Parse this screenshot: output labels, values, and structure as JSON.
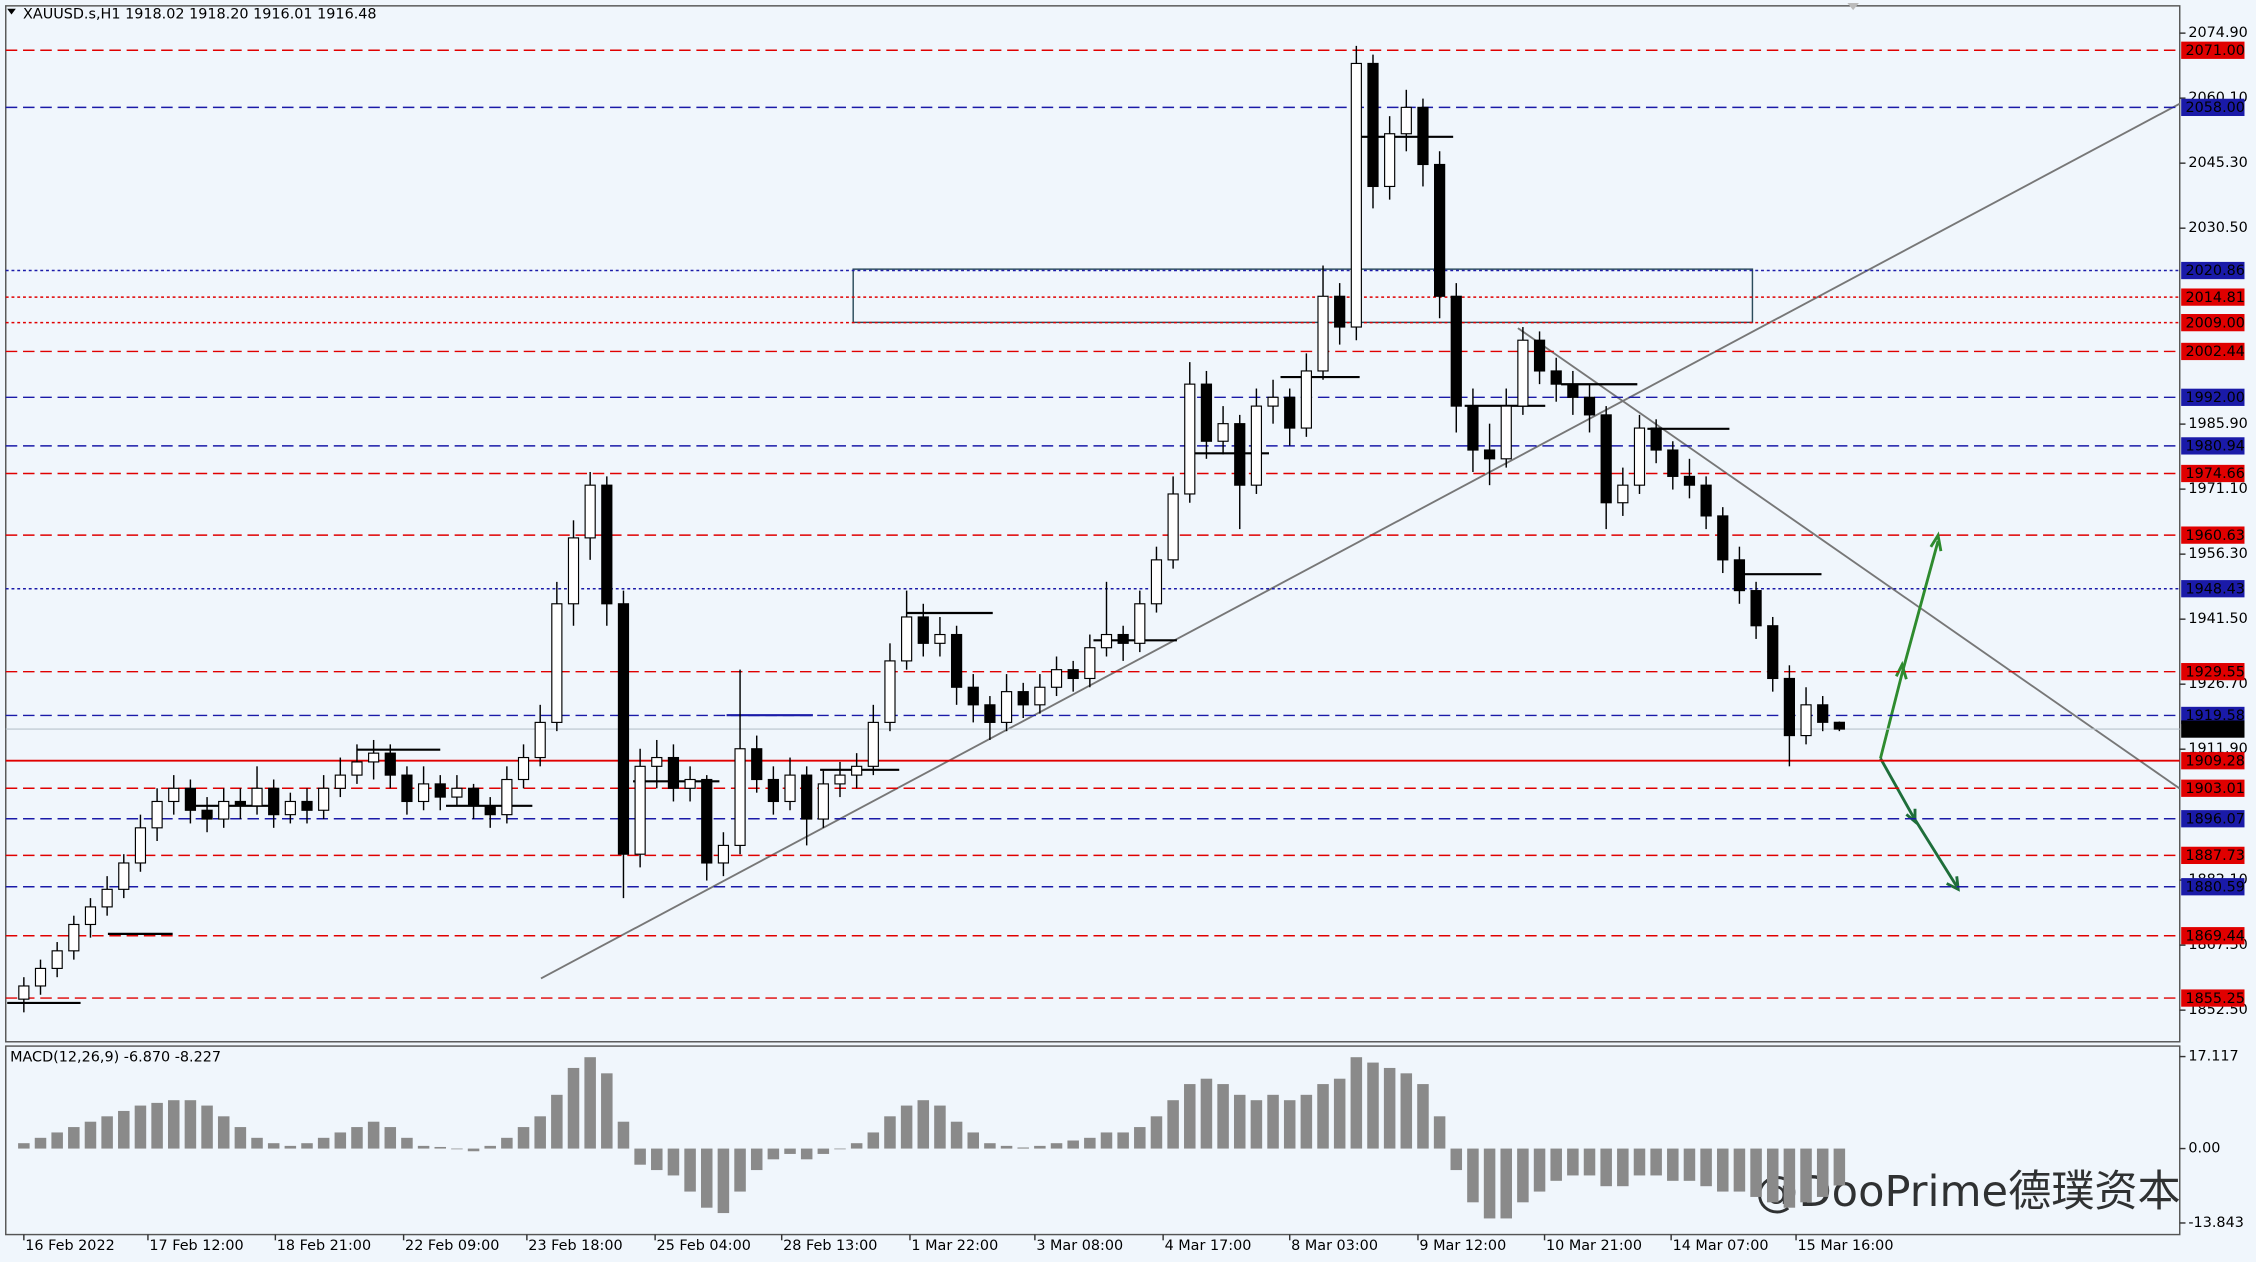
{
  "chart_data": {
    "type": "candlestick",
    "title": "XAUUSD.s,H1  1918.02 1918.20 1916.01 1916.48",
    "watermark": "@DooPrime德璞资本",
    "xlim": [
      -1,
      110
    ],
    "xticks": [
      {
        "value": 0,
        "label": "16 Feb 2022"
      },
      {
        "value": 7.45,
        "label": "17 Feb 12:00"
      },
      {
        "value": 15.1,
        "label": "18 Feb 21:00"
      },
      {
        "value": 22.8,
        "label": "22 Feb 09:00"
      },
      {
        "value": 30.2,
        "label": "23 Feb 18:00"
      },
      {
        "value": 37.9,
        "label": "25 Feb 04:00"
      },
      {
        "value": 45.5,
        "label": "28 Feb 13:00"
      },
      {
        "value": 53.2,
        "label": "1 Mar 22:00"
      },
      {
        "value": 60.7,
        "label": "3 Mar 08:00"
      },
      {
        "value": 68.4,
        "label": "4 Mar 17:00"
      },
      {
        "value": 76.0,
        "label": "8 Mar 03:00"
      },
      {
        "value": 83.7,
        "label": "9 Mar 12:00"
      },
      {
        "value": 91.3,
        "label": "10 Mar 21:00"
      },
      {
        "value": 98.9,
        "label": "14 Mar 07:00"
      },
      {
        "value": 106.4,
        "label": "15 Mar 16:00"
      }
    ],
    "ylim": [
      1845.3,
      2079.8
    ],
    "yticks": [
      {
        "value": 2074.9,
        "label": "2074.90"
      },
      {
        "value": 2060.1,
        "label": "2060.10"
      },
      {
        "value": 2045.3,
        "label": "2045.30"
      },
      {
        "value": 2030.5,
        "label": "2030.50"
      },
      {
        "value": 1985.9,
        "label": "1985.90"
      },
      {
        "value": 1971.1,
        "label": "1971.10"
      },
      {
        "value": 1956.3,
        "label": "1956.30"
      },
      {
        "value": 1941.5,
        "label": "1941.50"
      },
      {
        "value": 1926.7,
        "label": "1926.70"
      },
      {
        "value": 1911.9,
        "label": "1911.90"
      },
      {
        "value": 1882.1,
        "label": "1882.10"
      },
      {
        "value": 1867.3,
        "label": "1867.30"
      },
      {
        "value": 1852.5,
        "label": "1852.50"
      }
    ],
    "levels": [
      {
        "value": 2071,
        "label": "2071.00",
        "color": "#e00000",
        "dash": "dashed"
      },
      {
        "value": 2058,
        "label": "2058.00",
        "color": "#1a1aa8",
        "dash": "dashed"
      },
      {
        "value": 2020.86,
        "label": "2020.86",
        "color": "#1a1aa8",
        "dash": "dotted"
      },
      {
        "value": 2014.81,
        "label": "2014.81",
        "color": "#e00000",
        "dash": "dotted"
      },
      {
        "value": 2009,
        "label": "2009.00",
        "color": "#e00000",
        "dash": "dotted"
      },
      {
        "value": 2002.44,
        "label": "2002.44",
        "color": "#e00000",
        "dash": "dashed"
      },
      {
        "value": 1992,
        "label": "1992.00",
        "color": "#1a1aa8",
        "dash": "dashed"
      },
      {
        "value": 1980.94,
        "label": "1980.94",
        "color": "#1a1aa8",
        "dash": "dashed"
      },
      {
        "value": 1974.66,
        "label": "1974.66",
        "color": "#e00000",
        "dash": "dashed"
      },
      {
        "value": 1960.63,
        "label": "1960.63",
        "color": "#e00000",
        "dash": "dashed"
      },
      {
        "value": 1948.43,
        "label": "1948.43",
        "color": "#1a1aa8",
        "dash": "dotted"
      },
      {
        "value": 1929.55,
        "label": "1929.55",
        "color": "#e00000",
        "dash": "dashed"
      },
      {
        "value": 1919.58,
        "label": "1919.58",
        "color": "#1a1aa8",
        "dash": "dashed"
      },
      {
        "value": 1916.48,
        "label": "1916.48",
        "color": "#000000",
        "dash": "none"
      },
      {
        "value": 1909.28,
        "label": "1909.28",
        "color": "#e00000",
        "dash": "solid"
      },
      {
        "value": 1903.01,
        "label": "1903.01",
        "color": "#e00000",
        "dash": "dashed"
      },
      {
        "value": 1896.07,
        "label": "1896.07",
        "color": "#1a1aa8",
        "dash": "dashed"
      },
      {
        "value": 1887.73,
        "label": "1887.73",
        "color": "#e00000",
        "dash": "dashed"
      },
      {
        "value": 1880.59,
        "label": "1880.59",
        "color": "#1a1aa8",
        "dash": "dashed"
      },
      {
        "value": 1869.44,
        "label": "1869.44",
        "color": "#e00000",
        "dash": "dashed"
      },
      {
        "value": 1855.25,
        "label": "1855.25",
        "color": "#e00000",
        "dash": "dashed"
      }
    ],
    "candles": [
      [
        1855,
        1860,
        1852,
        1858
      ],
      [
        1858,
        1864,
        1856,
        1862
      ],
      [
        1862,
        1868,
        1860,
        1866
      ],
      [
        1866,
        1874,
        1864,
        1872
      ],
      [
        1872,
        1878,
        1869,
        1876
      ],
      [
        1876,
        1883,
        1874,
        1880
      ],
      [
        1880,
        1888,
        1878,
        1886
      ],
      [
        1886,
        1897,
        1884,
        1894
      ],
      [
        1894,
        1903,
        1891,
        1900
      ],
      [
        1900,
        1906,
        1897,
        1903
      ],
      [
        1903,
        1905,
        1895,
        1898
      ],
      [
        1898,
        1901,
        1893,
        1896
      ],
      [
        1896,
        1903,
        1894,
        1900
      ],
      [
        1900,
        1903,
        1896,
        1899
      ],
      [
        1899,
        1908,
        1897,
        1903
      ],
      [
        1903,
        1905,
        1894,
        1897
      ],
      [
        1897,
        1902,
        1895,
        1900
      ],
      [
        1900,
        1903,
        1895,
        1898
      ],
      [
        1898,
        1906,
        1896,
        1903
      ],
      [
        1903,
        1910,
        1901,
        1906
      ],
      [
        1906,
        1913,
        1904,
        1909
      ],
      [
        1909,
        1914,
        1905,
        1911
      ],
      [
        1911,
        1913,
        1903,
        1906
      ],
      [
        1906,
        1908,
        1897,
        1900
      ],
      [
        1900,
        1908,
        1898,
        1904
      ],
      [
        1904,
        1906,
        1898,
        1901
      ],
      [
        1901,
        1906,
        1899,
        1903
      ],
      [
        1903,
        1904,
        1896,
        1899
      ],
      [
        1899,
        1901,
        1894,
        1897
      ],
      [
        1897,
        1908,
        1895,
        1905
      ],
      [
        1905,
        1913,
        1903,
        1910
      ],
      [
        1910,
        1922,
        1908,
        1918
      ],
      [
        1918,
        1950,
        1916,
        1945
      ],
      [
        1945,
        1964,
        1940,
        1960
      ],
      [
        1960,
        1975,
        1955,
        1972
      ],
      [
        1972,
        1974,
        1940,
        1945
      ],
      [
        1945,
        1948,
        1878,
        1888
      ],
      [
        1888,
        1912,
        1885,
        1908
      ],
      [
        1908,
        1914,
        1903,
        1910
      ],
      [
        1910,
        1913,
        1900,
        1903
      ],
      [
        1903,
        1908,
        1900,
        1905
      ],
      [
        1905,
        1906,
        1882,
        1886
      ],
      [
        1886,
        1893,
        1883,
        1890
      ],
      [
        1890,
        1930,
        1888,
        1912
      ],
      [
        1912,
        1915,
        1902,
        1905
      ],
      [
        1905,
        1908,
        1897,
        1900
      ],
      [
        1900,
        1910,
        1898,
        1906
      ],
      [
        1906,
        1908,
        1890,
        1896
      ],
      [
        1896,
        1907,
        1894,
        1904
      ],
      [
        1904,
        1909,
        1901,
        1906
      ],
      [
        1906,
        1911,
        1903,
        1908
      ],
      [
        1908,
        1922,
        1906,
        1918
      ],
      [
        1918,
        1936,
        1916,
        1932
      ],
      [
        1932,
        1948,
        1930,
        1942
      ],
      [
        1942,
        1945,
        1933,
        1936
      ],
      [
        1936,
        1942,
        1933,
        1938
      ],
      [
        1938,
        1940,
        1922,
        1926
      ],
      [
        1926,
        1929,
        1918,
        1922
      ],
      [
        1922,
        1924,
        1914,
        1918
      ],
      [
        1918,
        1929,
        1916,
        1925
      ],
      [
        1925,
        1927,
        1919,
        1922
      ],
      [
        1922,
        1929,
        1920,
        1926
      ],
      [
        1926,
        1933,
        1924,
        1930
      ],
      [
        1930,
        1932,
        1925,
        1928
      ],
      [
        1928,
        1938,
        1926,
        1935
      ],
      [
        1935,
        1950,
        1933,
        1938
      ],
      [
        1938,
        1940,
        1932,
        1936
      ],
      [
        1936,
        1948,
        1934,
        1945
      ],
      [
        1945,
        1958,
        1943,
        1955
      ],
      [
        1955,
        1974,
        1953,
        1970
      ],
      [
        1970,
        2000,
        1968,
        1995
      ],
      [
        1995,
        1998,
        1978,
        1982
      ],
      [
        1982,
        1990,
        1979,
        1986
      ],
      [
        1986,
        1988,
        1962,
        1972
      ],
      [
        1972,
        1994,
        1970,
        1990
      ],
      [
        1990,
        1996,
        1986,
        1992
      ],
      [
        1992,
        1994,
        1981,
        1985
      ],
      [
        1985,
        2002,
        1983,
        1998
      ],
      [
        1998,
        2022,
        1996,
        2015
      ],
      [
        2015,
        2018,
        2004,
        2008
      ],
      [
        2008,
        2072,
        2005,
        2068
      ],
      [
        2068,
        2070,
        2035,
        2040
      ],
      [
        2040,
        2056,
        2037,
        2052
      ],
      [
        2052,
        2062,
        2048,
        2058
      ],
      [
        2058,
        2060,
        2040,
        2045
      ],
      [
        2045,
        2048,
        2010,
        2015
      ],
      [
        2015,
        2018,
        1984,
        1990
      ],
      [
        1990,
        1994,
        1975,
        1980
      ],
      [
        1980,
        1986,
        1972,
        1978
      ],
      [
        1978,
        1994,
        1976,
        1990
      ],
      [
        1990,
        2008,
        1988,
        2005
      ],
      [
        2005,
        2007,
        1995,
        1998
      ],
      [
        1998,
        2001,
        1991,
        1995
      ],
      [
        1995,
        1998,
        1988,
        1992
      ],
      [
        1992,
        1995,
        1984,
        1988
      ],
      [
        1988,
        1990,
        1962,
        1968
      ],
      [
        1968,
        1976,
        1965,
        1972
      ],
      [
        1972,
        1988,
        1970,
        1985
      ],
      [
        1985,
        1987,
        1977,
        1980
      ],
      [
        1980,
        1982,
        1971,
        1974
      ],
      [
        1974,
        1978,
        1969,
        1972
      ],
      [
        1972,
        1974,
        1962,
        1965
      ],
      [
        1965,
        1967,
        1952,
        1955
      ],
      [
        1955,
        1958,
        1945,
        1948
      ],
      [
        1948,
        1950,
        1937,
        1940
      ],
      [
        1940,
        1942,
        1925,
        1928
      ],
      [
        1928,
        1931,
        1908,
        1915
      ],
      [
        1915,
        1926,
        1913,
        1922
      ],
      [
        1922,
        1924,
        1916,
        1918.02
      ],
      [
        1918.02,
        1918.2,
        1916.01,
        1916.48
      ]
    ],
    "macd": {
      "label": "MACD(12,26,9) -6.870 -8.227",
      "ylim": [
        -16,
        18.8
      ],
      "yticks": [
        17.117,
        {
          "value": 0,
          "label": "0.00"
        },
        -13.843
      ],
      "values": [
        1,
        2,
        3,
        4,
        5,
        6,
        7,
        8,
        8.5,
        9,
        9,
        8,
        6,
        4,
        2,
        1,
        0.5,
        1,
        2,
        3,
        4,
        5,
        4,
        2,
        0.5,
        0.3,
        0,
        -0.5,
        0.5,
        2,
        4,
        6,
        10,
        15,
        17,
        14,
        5,
        -3,
        -4,
        -5,
        -8,
        -11,
        -12,
        -8,
        -4,
        -2,
        -1,
        -2,
        -1,
        0,
        1,
        3,
        6,
        8,
        9,
        8,
        5,
        3,
        1,
        0.5,
        0.2,
        0.5,
        1,
        1.5,
        2,
        3,
        3,
        4,
        6,
        9,
        12,
        13,
        12,
        10,
        9,
        10,
        9,
        10,
        12,
        13,
        17,
        16,
        15,
        14,
        12,
        6,
        -4,
        -10,
        -13,
        -13,
        -10,
        -8,
        -6,
        -5,
        -5,
        -7,
        -7,
        -5,
        -5,
        -6,
        -6,
        -7,
        -8,
        -8,
        -9,
        -10,
        -11,
        -10,
        -9,
        -6.87
      ]
    }
  }
}
